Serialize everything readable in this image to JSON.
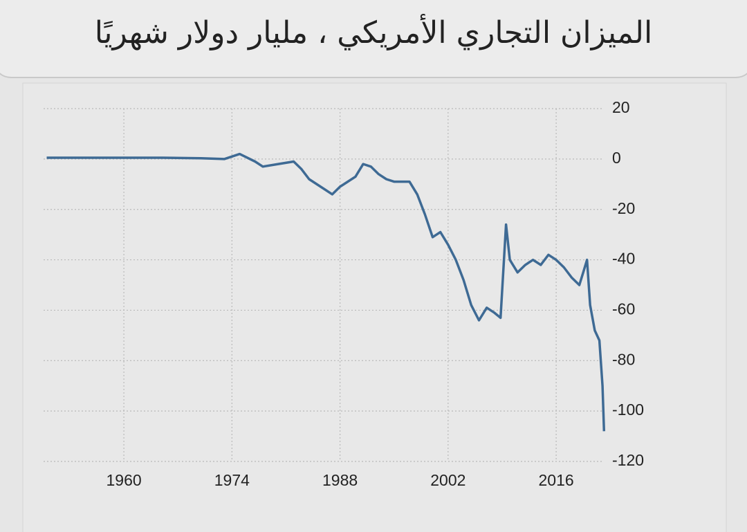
{
  "chart_data": {
    "type": "line",
    "title": "الميزان التجاري الأمريكي ، مليار دولار شهريًا",
    "x": [
      1950,
      1955,
      1960,
      1965,
      1970,
      1973,
      1975,
      1977,
      1978,
      1980,
      1982,
      1983,
      1984,
      1986,
      1987,
      1988,
      1989,
      1990,
      1991,
      1992,
      1993,
      1994,
      1995,
      1996,
      1997,
      1998,
      1999,
      2000,
      2001,
      2002,
      2003,
      2004,
      2005,
      2006,
      2007,
      2008,
      2008.8,
      2009.5,
      2010,
      2011,
      2012,
      2013,
      2014,
      2015,
      2016,
      2017,
      2018,
      2019,
      2019.5,
      2020,
      2020.4,
      2021,
      2021.6,
      2022,
      2022.2
    ],
    "values": [
      0.5,
      0.5,
      0.5,
      0.5,
      0.3,
      0,
      2,
      -1,
      -3,
      -2,
      -1,
      -4,
      -8,
      -12,
      -14,
      -11,
      -9,
      -7,
      -2,
      -3,
      -6,
      -8,
      -9,
      -9,
      -9,
      -14,
      -22,
      -31,
      -29,
      -34,
      -40,
      -48,
      -58,
      -64,
      -59,
      -61,
      -63,
      -26,
      -40,
      -45,
      -42,
      -40,
      -42,
      -38,
      -40,
      -43,
      -47,
      -50,
      -45,
      -40,
      -58,
      -68,
      -72,
      -90,
      -108
    ],
    "color": "#3e6a94",
    "xlim": [
      1949.6,
      2022.8
    ],
    "xticks": [
      1960,
      1974,
      1988,
      2002,
      2016
    ],
    "ylim": [
      -120,
      20
    ],
    "yticks": [
      20,
      0,
      -20,
      -40,
      -60,
      -80,
      -100,
      -120
    ],
    "grid": true
  }
}
